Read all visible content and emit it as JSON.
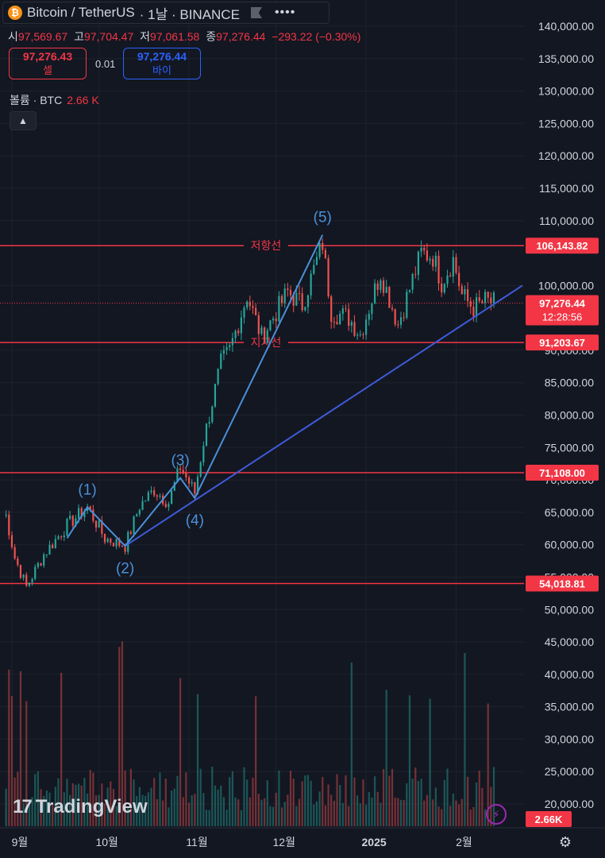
{
  "header": {
    "symbol": "Bitcoin / TetherUS",
    "interval": "· 1날 · BINANCE",
    "coin_icon_glyph": "₿",
    "more_glyph": "••••"
  },
  "ohlc": {
    "open_label": "시",
    "open": "97,569.67",
    "high_label": "고",
    "high": "97,704.47",
    "low_label": "저",
    "low": "97,061.58",
    "close_label": "종",
    "close": "97,276.44",
    "change": "−293.22 (−0.30%)"
  },
  "trade": {
    "sell_price": "97,276.43",
    "sell_label": "셀",
    "spread": "0.01",
    "buy_price": "97,276.44",
    "buy_label": "바이"
  },
  "volume_legend": {
    "label": "볼륨 · BTC",
    "value": "2.66 K"
  },
  "colors": {
    "up": "#26a69a",
    "down": "#ef5350",
    "level": "#f23645",
    "wave": "#4a90d9",
    "trend": "#3f5bd9"
  },
  "chart_data": {
    "type": "candlestick",
    "price_axis": {
      "ticks": [
        "140,000.00",
        "135,000.00",
        "130,000.00",
        "125,000.00",
        "120,000.00",
        "115,000.00",
        "110,000.00",
        "100,000.00",
        "90,000.00",
        "85,000.00",
        "80,000.00",
        "75,000.00",
        "70,000.00",
        "65,000.00",
        "60,000.00",
        "55,000.00",
        "50,000.00",
        "45,000.00",
        "40,000.00",
        "35,000.00",
        "30,000.00",
        "25,000.00",
        "20,000.00"
      ],
      "tick_values": [
        140000,
        135000,
        130000,
        125000,
        120000,
        115000,
        110000,
        100000,
        90000,
        85000,
        80000,
        75000,
        70000,
        65000,
        60000,
        55000,
        50000,
        45000,
        40000,
        35000,
        30000,
        25000,
        20000
      ],
      "range": [
        15000,
        142000
      ]
    },
    "time_axis": [
      "9월",
      "10월",
      "11월",
      "12월",
      "2025",
      "2월"
    ],
    "horizontal_levels": [
      {
        "value": 106143.82,
        "label": "106,143.82",
        "text": "저항선"
      },
      {
        "value": 91203.67,
        "label": "91,203.67",
        "text": "지지선"
      },
      {
        "value": 71108.0,
        "label": "71,108.00",
        "text": ""
      },
      {
        "value": 54018.81,
        "label": "54,018.81",
        "text": ""
      }
    ],
    "last_price": {
      "value": 97276.44,
      "label": "97,276.44",
      "countdown": "12:28:56"
    },
    "volume_last": "2.66K",
    "waves": [
      {
        "label": "(1)",
        "price": 65800
      },
      {
        "label": "(2)",
        "price": 59800
      },
      {
        "label": "(3)",
        "price": 70300
      },
      {
        "label": "(4)",
        "price": 67200
      },
      {
        "label": "(5)",
        "price": 107800
      }
    ],
    "price_path": [
      [
        "2024-08-30",
        64500
      ],
      [
        "2024-09-02",
        58000
      ],
      [
        "2024-09-06",
        53500
      ],
      [
        "2024-09-12",
        58500
      ],
      [
        "2024-09-20",
        63000
      ],
      [
        "2024-09-27",
        65800
      ],
      [
        "2024-10-03",
        61000
      ],
      [
        "2024-10-10",
        59800
      ],
      [
        "2024-10-15",
        66000
      ],
      [
        "2024-10-20",
        68500
      ],
      [
        "2024-10-25",
        66500
      ],
      [
        "2024-10-29",
        72000
      ],
      [
        "2024-11-03",
        68000
      ],
      [
        "2024-11-06",
        76000
      ],
      [
        "2024-11-12",
        88000
      ],
      [
        "2024-11-15",
        90000
      ],
      [
        "2024-11-21",
        98500
      ],
      [
        "2024-11-26",
        92000
      ],
      [
        "2024-12-05",
        99000
      ],
      [
        "2024-12-10",
        97000
      ],
      [
        "2024-12-17",
        106500
      ],
      [
        "2024-12-20",
        96000
      ],
      [
        "2024-12-26",
        95000
      ],
      [
        "2024-12-30",
        92500
      ],
      [
        "2025-01-06",
        102000
      ],
      [
        "2025-01-12",
        94000
      ],
      [
        "2025-01-20",
        105000
      ],
      [
        "2025-01-24",
        104500
      ],
      [
        "2025-01-27",
        100500
      ],
      [
        "2025-01-31",
        104000
      ],
      [
        "2025-02-03",
        98500
      ],
      [
        "2025-02-07",
        96500
      ],
      [
        "2025-02-11",
        97600
      ],
      [
        "2025-02-14",
        97276
      ]
    ]
  }
}
